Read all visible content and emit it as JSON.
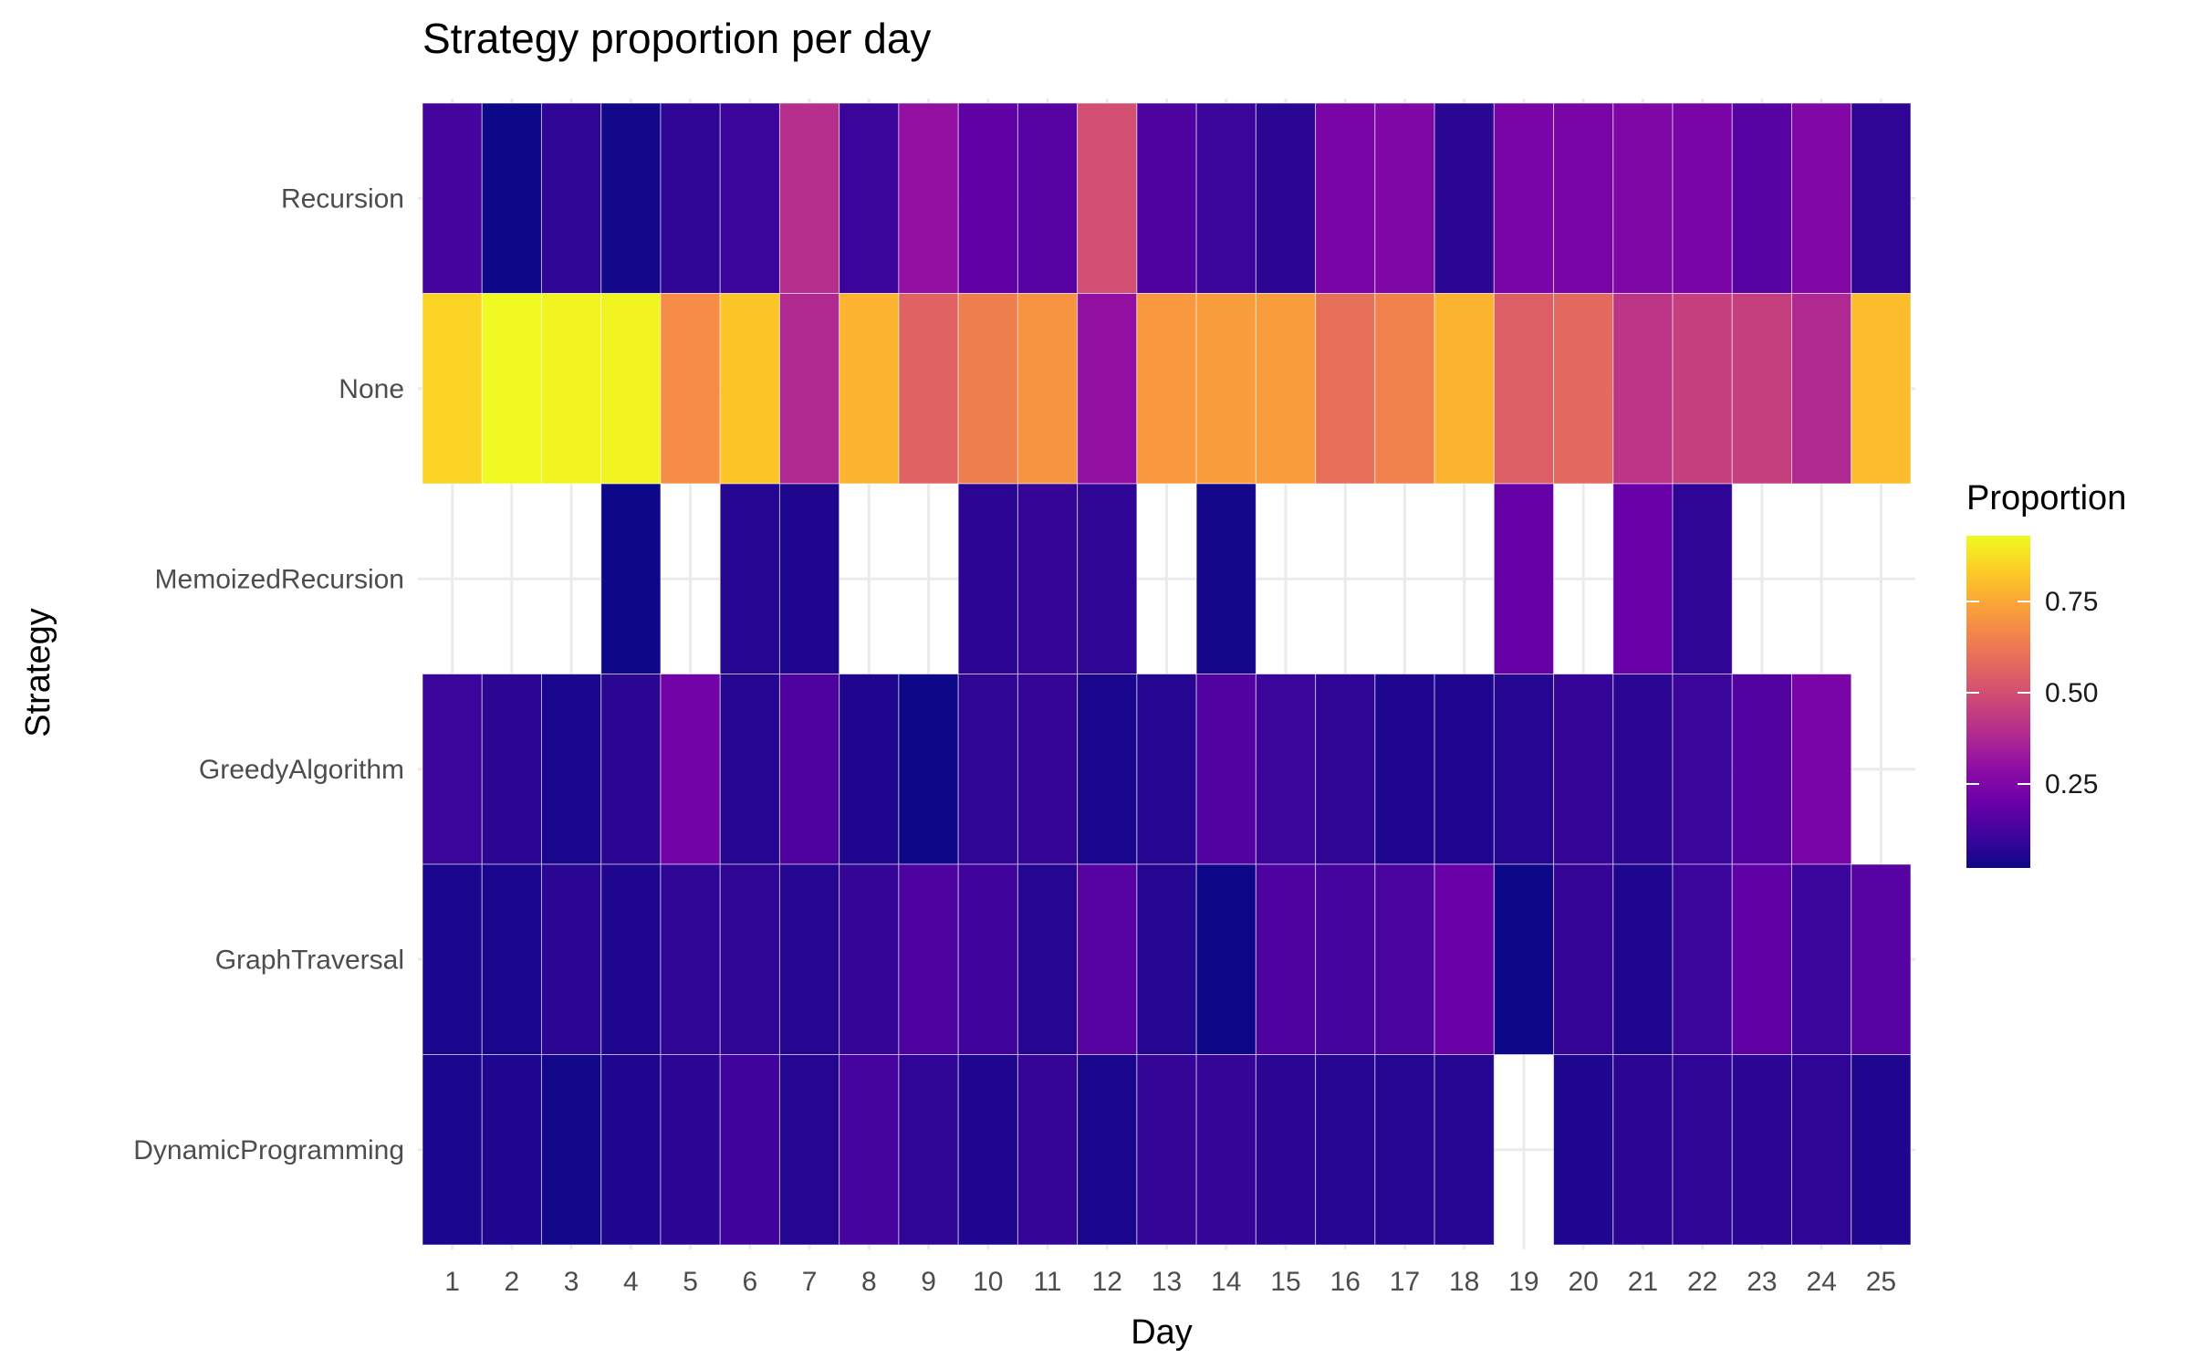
{
  "chart_data": {
    "type": "heatmap",
    "title": "Strategy proportion per day",
    "xlabel": "Day",
    "ylabel": "Strategy",
    "x": [
      1,
      2,
      3,
      4,
      5,
      6,
      7,
      8,
      9,
      10,
      11,
      12,
      13,
      14,
      15,
      16,
      17,
      18,
      19,
      20,
      21,
      22,
      23,
      24,
      25
    ],
    "x_tick_labels": [
      "1",
      "2",
      "3",
      "4",
      "5",
      "6",
      "7",
      "8",
      "9",
      "10",
      "11",
      "12",
      "13",
      "14",
      "15",
      "16",
      "17",
      "18",
      "19",
      "20",
      "21",
      "22",
      "23",
      "24",
      "25"
    ],
    "y": [
      "Recursion",
      "None",
      "MemoizedRecursion",
      "GreedyAlgorithm",
      "GraphTraversal",
      "DynamicProgramming"
    ],
    "values": [
      [
        0.12,
        0.02,
        0.08,
        0.03,
        0.08,
        0.1,
        0.4,
        0.1,
        0.3,
        0.18,
        0.16,
        0.5,
        0.14,
        0.1,
        0.07,
        0.24,
        0.25,
        0.07,
        0.24,
        0.24,
        0.25,
        0.24,
        0.16,
        0.26,
        0.08
      ],
      [
        0.85,
        0.93,
        0.92,
        0.92,
        0.68,
        0.82,
        0.38,
        0.78,
        0.56,
        0.64,
        0.7,
        0.3,
        0.71,
        0.72,
        0.72,
        0.6,
        0.65,
        0.78,
        0.55,
        0.58,
        0.42,
        0.45,
        0.45,
        0.38,
        0.8
      ],
      [
        null,
        null,
        null,
        0.02,
        null,
        0.06,
        0.05,
        null,
        null,
        0.07,
        0.09,
        0.08,
        null,
        0.03,
        null,
        null,
        null,
        null,
        0.19,
        null,
        0.2,
        0.08,
        null,
        null,
        null
      ],
      [
        0.1,
        0.07,
        0.04,
        0.07,
        0.22,
        0.06,
        0.14,
        0.05,
        0.02,
        0.08,
        0.09,
        0.04,
        0.06,
        0.15,
        0.1,
        0.08,
        0.05,
        0.05,
        0.06,
        0.09,
        0.07,
        0.1,
        0.15,
        0.24,
        null
      ],
      [
        0.04,
        0.04,
        0.07,
        0.05,
        0.08,
        0.08,
        0.06,
        0.09,
        0.14,
        0.11,
        0.06,
        0.16,
        0.06,
        0.02,
        0.14,
        0.12,
        0.13,
        0.2,
        0.02,
        0.09,
        0.05,
        0.1,
        0.18,
        0.1,
        0.16
      ],
      [
        0.04,
        0.05,
        0.03,
        0.05,
        0.07,
        0.11,
        0.06,
        0.12,
        0.08,
        0.05,
        0.09,
        0.04,
        0.09,
        0.09,
        0.07,
        0.06,
        0.06,
        0.06,
        null,
        0.05,
        0.07,
        0.08,
        0.07,
        0.08,
        0.05
      ]
    ],
    "legend": {
      "title": "Proportion",
      "ticks": [
        0.25,
        0.5,
        0.75
      ],
      "tick_labels": [
        "0.25",
        "0.50",
        "0.75"
      ],
      "range": [
        0.02,
        0.93
      ],
      "colorscale": "plasma",
      "placement": "right"
    },
    "grid": true
  }
}
